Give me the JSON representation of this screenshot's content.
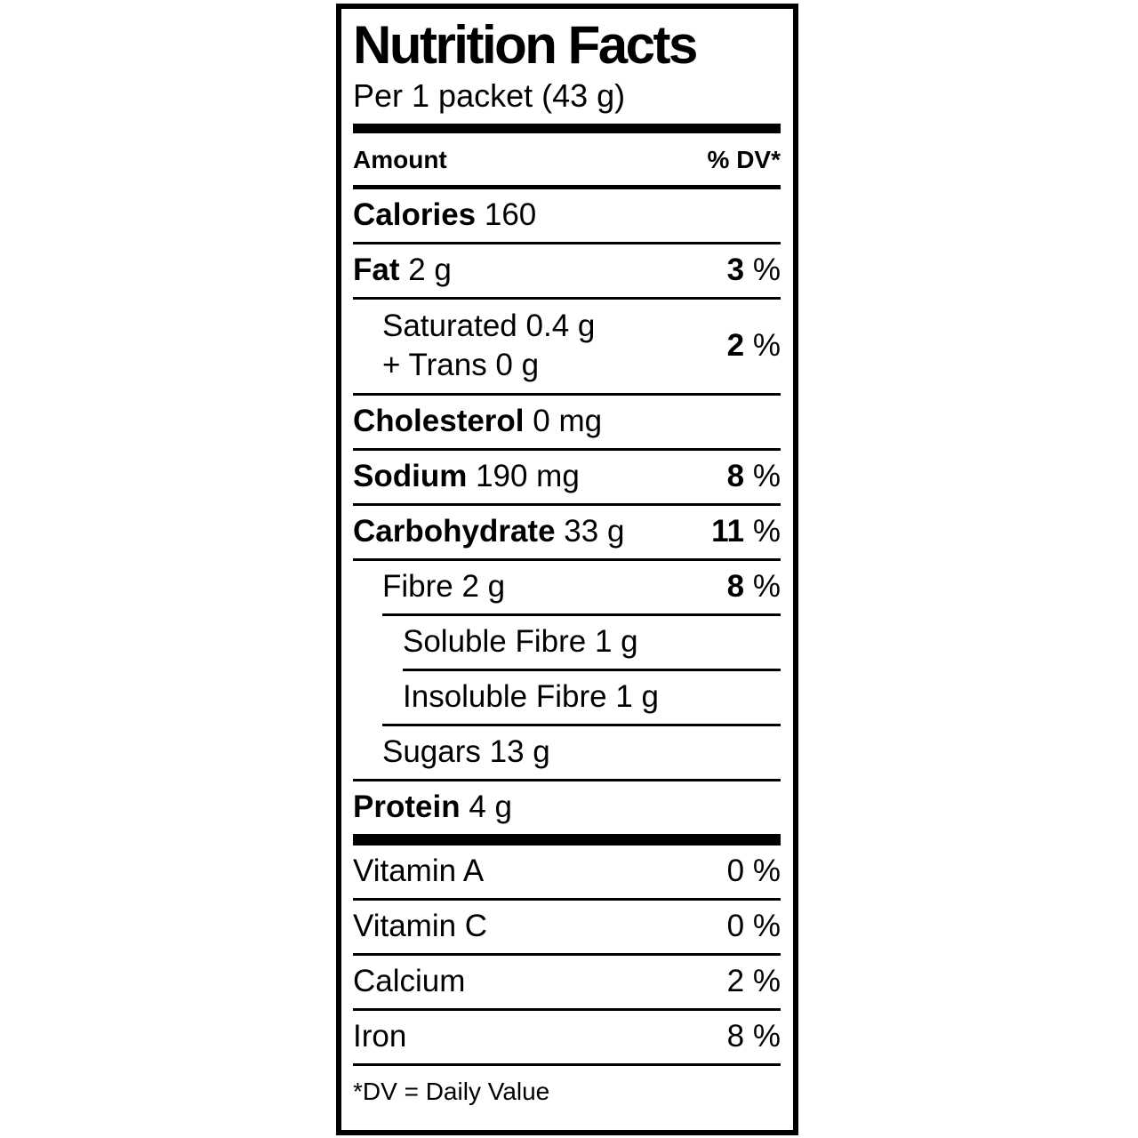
{
  "label": {
    "title": "Nutrition Facts",
    "serving": "Per 1 packet (43 g)",
    "col_amount": "Amount",
    "col_dv": "% DV*",
    "percent_sign": "%",
    "footnote": "*DV = Daily Value",
    "colors": {
      "text": "#000000",
      "background": "#ffffff"
    },
    "rows": {
      "calories": {
        "name": "Calories",
        "qty": "160"
      },
      "fat": {
        "name": "Fat",
        "qty": "2 g",
        "dv": "3"
      },
      "saturated": {
        "line1": "Saturated 0.4 g",
        "line2": "+ Trans 0 g",
        "dv": "2"
      },
      "cholesterol": {
        "name": "Cholesterol",
        "qty": "0 mg"
      },
      "sodium": {
        "name": "Sodium",
        "qty": "190 mg",
        "dv": "8"
      },
      "carbohydrate": {
        "name": "Carbohydrate",
        "qty": "33 g",
        "dv": "11"
      },
      "fibre": {
        "name": "Fibre",
        "qty": "2 g",
        "dv": "8"
      },
      "soluble_fibre": {
        "name": "Soluble Fibre",
        "qty": "1 g"
      },
      "insoluble_fibre": {
        "name": "Insoluble Fibre",
        "qty": "1 g"
      },
      "sugars": {
        "name": "Sugars",
        "qty": "13 g"
      },
      "protein": {
        "name": "Protein",
        "qty": "4 g"
      },
      "vitamin_a": {
        "name": "Vitamin A",
        "dv": "0"
      },
      "vitamin_c": {
        "name": "Vitamin C",
        "dv": "0"
      },
      "calcium": {
        "name": "Calcium",
        "dv": "2"
      },
      "iron": {
        "name": "Iron",
        "dv": "8"
      }
    }
  }
}
